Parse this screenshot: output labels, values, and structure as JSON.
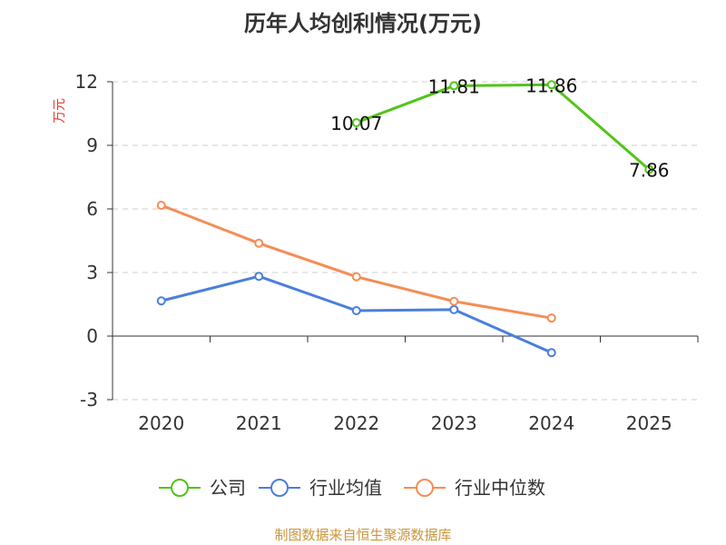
{
  "chart_data": {
    "type": "line",
    "title": "历年人均创利情况(万元)",
    "ylabel": "万元",
    "xlabel": "",
    "categories": [
      "2020",
      "2021",
      "2022",
      "2023",
      "2024",
      "2025"
    ],
    "ylim": [
      -3,
      12
    ],
    "yticks": [
      -3,
      0,
      3,
      6,
      9,
      12
    ],
    "grid": true,
    "legend_position": "bottom",
    "series": [
      {
        "name": "公司",
        "color": "#52c41a",
        "values": [
          null,
          null,
          10.07,
          11.81,
          11.86,
          7.86
        ],
        "labels": [
          "",
          "",
          "10.07",
          "11.81",
          "11.86",
          "7.86"
        ]
      },
      {
        "name": "行业均值",
        "color": "#4a7fdc",
        "values": [
          1.66,
          2.82,
          1.2,
          1.25,
          -0.78,
          null
        ],
        "labels": []
      },
      {
        "name": "行业中位数",
        "color": "#f58d55",
        "values": [
          6.17,
          4.38,
          2.8,
          1.64,
          0.85,
          null
        ],
        "labels": []
      }
    ]
  },
  "footer": {
    "source": "制图数据来自恒生聚源数据库"
  }
}
